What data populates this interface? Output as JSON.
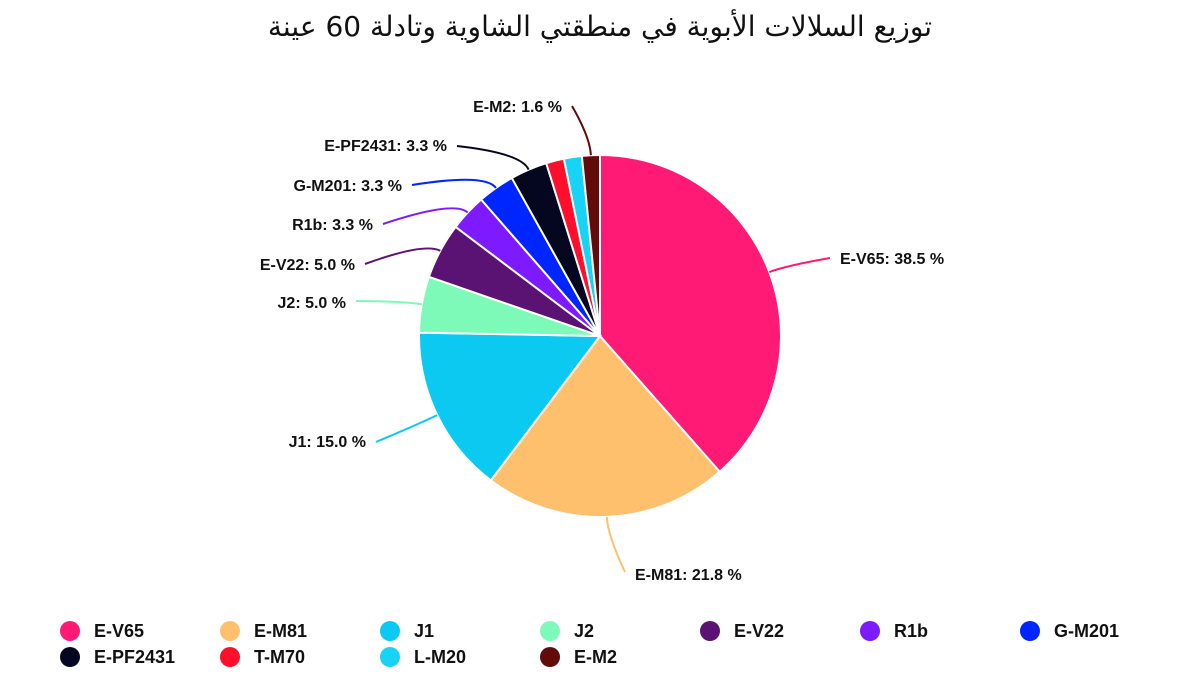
{
  "chart_data": {
    "type": "pie",
    "title": "توزيع السلالات الأبوية في منطقتي الشاوية وتادلة 60 عينة",
    "slices": [
      {
        "name": "E-V65",
        "value": 38.5,
        "label": "E-V65: 38.5 %",
        "color": "#ff1a75"
      },
      {
        "name": "E-M81",
        "value": 21.8,
        "label": "E-M81: 21.8 %",
        "color": "#ffc06e"
      },
      {
        "name": "J1",
        "value": 15.0,
        "label": "J1: 15.0 %",
        "color": "#0cc9f2"
      },
      {
        "name": "J2",
        "value": 5.0,
        "label": "J2: 5.0 %",
        "color": "#7dfab8"
      },
      {
        "name": "E-V22",
        "value": 5.0,
        "label": "E-V22: 5.0 %",
        "color": "#5a1273"
      },
      {
        "name": "R1b",
        "value": 3.3,
        "label": "R1b: 3.3 %",
        "color": "#7d1aff"
      },
      {
        "name": "G-M201",
        "value": 3.3,
        "label": "G-M201: 3.3 %",
        "color": "#0026ff"
      },
      {
        "name": "E-PF2431",
        "value": 3.3,
        "label": "E-PF2431: 3.3 %",
        "color": "#05061f"
      },
      {
        "name": "T-M70",
        "value": 1.6,
        "label": "",
        "color": "#ff0f2b"
      },
      {
        "name": "L-M20",
        "value": 1.6,
        "label": "",
        "color": "#17d3f5"
      },
      {
        "name": "E-M2",
        "value": 1.6,
        "label": "E-M2: 1.6 %",
        "color": "#610b0b"
      }
    ],
    "legend": [
      "E-V65",
      "E-M81",
      "J1",
      "J2",
      "E-V22",
      "R1b",
      "G-M201",
      "E-PF2431",
      "T-M70",
      "L-M20",
      "E-M2"
    ],
    "legend_position": "bottom"
  }
}
